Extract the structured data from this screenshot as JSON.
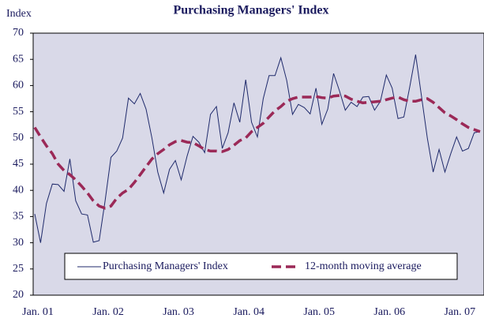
{
  "chart_data": {
    "type": "line",
    "title": "Purchasing Managers' Index",
    "y_label": "Index",
    "categories": [
      "Jan. 01",
      null,
      null,
      null,
      null,
      null,
      null,
      null,
      null,
      null,
      null,
      null,
      "Jan. 02",
      null,
      null,
      null,
      null,
      null,
      null,
      null,
      null,
      null,
      null,
      null,
      "Jan. 03",
      null,
      null,
      null,
      null,
      null,
      null,
      null,
      null,
      null,
      null,
      null,
      "Jan. 04",
      null,
      null,
      null,
      null,
      null,
      null,
      null,
      null,
      null,
      null,
      null,
      "Jan. 05",
      null,
      null,
      null,
      null,
      null,
      null,
      null,
      null,
      null,
      null,
      null,
      "Jan. 06",
      null,
      null,
      null,
      null,
      null,
      null,
      null,
      null,
      null,
      null,
      null,
      "Jan. 07",
      null,
      null,
      null,
      null
    ],
    "series": [
      {
        "name": "Purchasing Managers' Index",
        "color": "#1f2a6b",
        "dash": false,
        "values": [
          35.5,
          30,
          37.5,
          41.2,
          41.1,
          39.8,
          46,
          38,
          35.5,
          35.3,
          30.1,
          30.4,
          38,
          46.3,
          47.5,
          50,
          57.6,
          56.5,
          58.5,
          55.5,
          50,
          43.5,
          39.5,
          44,
          45.7,
          42,
          46.5,
          50.3,
          49.2,
          47.2,
          54.5,
          56,
          48,
          51,
          56.7,
          53,
          61.1,
          53,
          50.2,
          57.5,
          61.9,
          61.9,
          65.3,
          61,
          54.5,
          56.4,
          55.8,
          54.6,
          59.5,
          52.6,
          55.5,
          62.3,
          59,
          55.3,
          56.8,
          56,
          57.8,
          57.9,
          55.3,
          57,
          62,
          59.5,
          53.7,
          54,
          59.7,
          65.9,
          58,
          50,
          43.5,
          47.8,
          43.5,
          47,
          50.2,
          47.5,
          48,
          51,
          51.2
        ]
      },
      {
        "name": "12-month moving average",
        "color": "#9b2957",
        "dash": true,
        "values": [
          52,
          50.2,
          48.5,
          47,
          45,
          43.8,
          43,
          42,
          40.8,
          39.5,
          38,
          37,
          36.6,
          37,
          38.5,
          39.5,
          40.2,
          41.5,
          43,
          44.5,
          46,
          47,
          47.8,
          48.7,
          49.3,
          49.5,
          49.2,
          49.1,
          48.5,
          47.8,
          47.5,
          47.5,
          47.4,
          47.8,
          48.6,
          49.5,
          50,
          51.2,
          52,
          52.8,
          54,
          55.2,
          56,
          57,
          57.5,
          57.8,
          57.8,
          57.8,
          57.9,
          57.7,
          57.6,
          58,
          58.1,
          58,
          57.4,
          57,
          56.7,
          56.8,
          56.9,
          57,
          57.3,
          57.6,
          57.8,
          57.3,
          57,
          57,
          57.3,
          57.5,
          56.8,
          55.8,
          54.8,
          54.2,
          53.5,
          52.7,
          52,
          51.6,
          51.2
        ]
      }
    ],
    "ylim": [
      20,
      70
    ],
    "yticks": [
      20,
      25,
      30,
      35,
      40,
      45,
      50,
      55,
      60,
      65,
      70
    ],
    "legend": "bottom",
    "background": "#d9d9e8"
  }
}
